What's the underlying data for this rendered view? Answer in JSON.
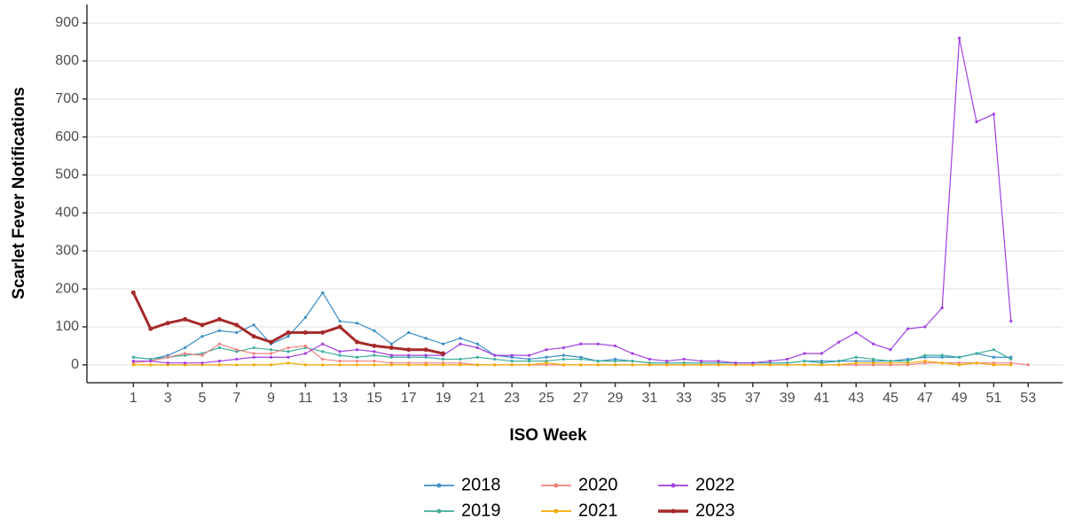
{
  "chart_data": {
    "type": "line",
    "x_label": "ISO Week",
    "y_label": "Scarlet Fever Notifications",
    "x": [
      1,
      2,
      3,
      4,
      5,
      6,
      7,
      8,
      9,
      10,
      11,
      12,
      13,
      14,
      15,
      16,
      17,
      18,
      19,
      20,
      21,
      22,
      23,
      24,
      25,
      26,
      27,
      28,
      29,
      30,
      31,
      32,
      33,
      34,
      35,
      36,
      37,
      38,
      39,
      40,
      41,
      42,
      43,
      44,
      45,
      46,
      47,
      48,
      49,
      50,
      51,
      52,
      53
    ],
    "xlim": [
      -1.7,
      55
    ],
    "xticks": [
      1,
      3,
      5,
      7,
      9,
      11,
      13,
      15,
      17,
      19,
      21,
      23,
      25,
      27,
      29,
      31,
      33,
      35,
      37,
      39,
      41,
      43,
      45,
      47,
      49,
      51,
      53
    ],
    "ylim": [
      -47,
      949
    ],
    "yticks": [
      0,
      100,
      200,
      300,
      400,
      500,
      600,
      700,
      800,
      900
    ],
    "grid": true,
    "legend": "bottom",
    "series": [
      {
        "name": "2018",
        "color": "#3b8fc7",
        "values": [
          20,
          15,
          25,
          45,
          75,
          90,
          85,
          105,
          55,
          75,
          125,
          190,
          115,
          110,
          90,
          55,
          85,
          70,
          55,
          70,
          55,
          25,
          20,
          15,
          20,
          25,
          20,
          10,
          15,
          10,
          5,
          5,
          5,
          5,
          5,
          5,
          5,
          5,
          5,
          10,
          10,
          10,
          10,
          10,
          10,
          15,
          20,
          20,
          20,
          30,
          20,
          20,
          null
        ]
      },
      {
        "name": "2019",
        "color": "#3fae9a",
        "values": [
          20,
          15,
          20,
          25,
          30,
          45,
          35,
          45,
          40,
          35,
          45,
          35,
          25,
          20,
          25,
          20,
          20,
          20,
          15,
          15,
          20,
          15,
          10,
          10,
          10,
          15,
          15,
          10,
          10,
          10,
          5,
          5,
          5,
          5,
          5,
          5,
          5,
          5,
          5,
          10,
          5,
          10,
          20,
          15,
          10,
          10,
          25,
          25,
          20,
          30,
          40,
          15,
          null
        ]
      },
      {
        "name": "2020",
        "color": "#f08080",
        "values": [
          5,
          10,
          20,
          30,
          25,
          55,
          40,
          30,
          30,
          45,
          50,
          15,
          10,
          10,
          10,
          5,
          5,
          5,
          5,
          5,
          0,
          0,
          0,
          0,
          0,
          0,
          0,
          0,
          0,
          0,
          0,
          0,
          0,
          0,
          0,
          0,
          0,
          0,
          0,
          0,
          0,
          0,
          0,
          0,
          0,
          0,
          5,
          5,
          5,
          5,
          5,
          5,
          0
        ]
      },
      {
        "name": "2021",
        "color": "#f2a900",
        "values": [
          0,
          0,
          0,
          0,
          0,
          0,
          0,
          0,
          0,
          5,
          0,
          0,
          0,
          0,
          0,
          0,
          0,
          0,
          0,
          0,
          0,
          0,
          0,
          0,
          5,
          0,
          0,
          0,
          0,
          0,
          0,
          0,
          0,
          0,
          0,
          0,
          0,
          0,
          0,
          0,
          0,
          0,
          5,
          5,
          5,
          5,
          10,
          5,
          0,
          5,
          0,
          0,
          null
        ]
      },
      {
        "name": "2022",
        "color": "#a23ee0",
        "values": [
          10,
          10,
          5,
          5,
          5,
          10,
          15,
          20,
          20,
          20,
          30,
          55,
          35,
          40,
          35,
          25,
          25,
          25,
          25,
          55,
          45,
          25,
          25,
          25,
          40,
          45,
          55,
          55,
          50,
          30,
          15,
          10,
          15,
          10,
          10,
          5,
          5,
          10,
          15,
          30,
          30,
          60,
          85,
          55,
          40,
          95,
          100,
          150,
          860,
          640,
          660,
          115,
          null
        ]
      },
      {
        "name": "2023",
        "color": "#a52a2a",
        "width": 3,
        "values": [
          190,
          95,
          110,
          120,
          105,
          120,
          105,
          75,
          60,
          85,
          85,
          85,
          100,
          60,
          50,
          45,
          40,
          40,
          30,
          null,
          null,
          null,
          null,
          null,
          null,
          null,
          null,
          null,
          null,
          null,
          null,
          null,
          null,
          null,
          null,
          null,
          null,
          null,
          null,
          null,
          null,
          null,
          null,
          null,
          null,
          null,
          null,
          null,
          null,
          null,
          null,
          null,
          null
        ]
      }
    ]
  }
}
